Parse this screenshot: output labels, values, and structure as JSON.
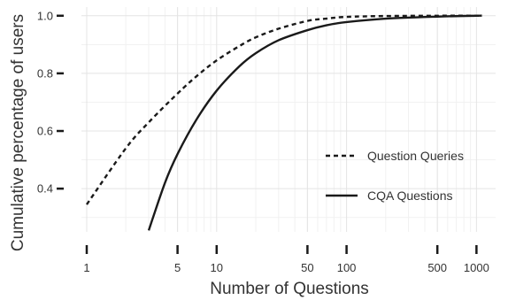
{
  "chart_data": {
    "type": "line",
    "xlabel": "Number of Questions",
    "ylabel": "Cumulative percentage of users",
    "xscale": "log10",
    "xlim": [
      1,
      1200
    ],
    "ylim": [
      0.25,
      1.03
    ],
    "xticks": [
      1,
      5,
      10,
      50,
      100,
      500,
      1000
    ],
    "xtick_labels": [
      "1",
      "5",
      "10",
      "50",
      "100",
      "500",
      "1000"
    ],
    "yticks": [
      0.4,
      0.6,
      0.8,
      1.0
    ],
    "ytick_labels": [
      "0.4",
      "0.6",
      "0.8",
      "1.0"
    ],
    "grid": true,
    "legend_position": "right",
    "series": [
      {
        "name": "Question Queries",
        "line_style": "dashed",
        "color": "#1a1a1a",
        "x": [
          1,
          2,
          3,
          5,
          7,
          10,
          15,
          20,
          30,
          50,
          70,
          100,
          200,
          500,
          1000,
          1100
        ],
        "y": [
          0.345,
          0.54,
          0.63,
          0.73,
          0.79,
          0.845,
          0.895,
          0.925,
          0.955,
          0.982,
          0.99,
          0.996,
          0.999,
          1.0,
          1.0,
          1.0
        ]
      },
      {
        "name": "CQA Questions",
        "line_style": "solid",
        "color": "#1a1a1a",
        "x": [
          3,
          4,
          5,
          7,
          10,
          15,
          20,
          30,
          50,
          70,
          100,
          200,
          500,
          1000,
          1100
        ],
        "y": [
          0.255,
          0.42,
          0.52,
          0.64,
          0.74,
          0.825,
          0.87,
          0.915,
          0.95,
          0.967,
          0.978,
          0.99,
          0.997,
          1.0,
          1.0
        ]
      }
    ]
  }
}
